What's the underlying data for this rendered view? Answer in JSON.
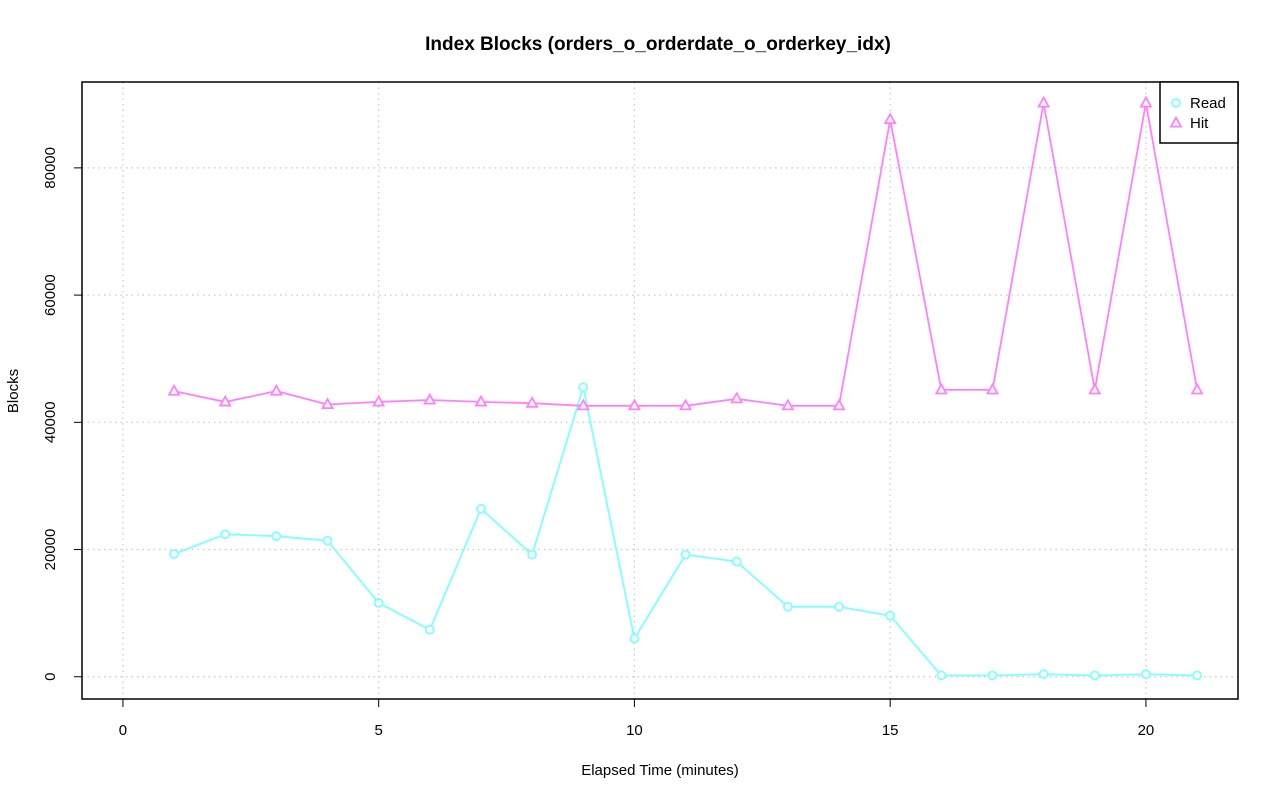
{
  "chart_data": {
    "type": "line",
    "title": "Index Blocks (orders_o_orderdate_o_orderkey_idx)",
    "xlabel": "Elapsed Time (minutes)",
    "ylabel": "Blocks",
    "xlim": [
      -0.8,
      21.8
    ],
    "ylim": [
      -3500,
      93500
    ],
    "x_ticks": [
      0,
      5,
      10,
      15,
      20
    ],
    "y_ticks": [
      0,
      20000,
      40000,
      60000,
      80000
    ],
    "grid": true,
    "legend_position": "top-right",
    "x": [
      1,
      2,
      3,
      4,
      5,
      6,
      7,
      8,
      9,
      10,
      11,
      12,
      13,
      14,
      15,
      16,
      17,
      18,
      19,
      20,
      21
    ],
    "series": [
      {
        "name": "Read",
        "color": "#7fffff",
        "marker": "circle",
        "values": [
          19300,
          22400,
          22100,
          21400,
          11600,
          7400,
          26400,
          19200,
          45500,
          6000,
          19200,
          18100,
          11000,
          11000,
          9600,
          200,
          200,
          400,
          200,
          400,
          200
        ]
      },
      {
        "name": "Hit",
        "color": "#ff80ff",
        "marker": "triangle",
        "values": [
          44900,
          43200,
          44900,
          42800,
          43200,
          43500,
          43200,
          43000,
          42600,
          42600,
          42600,
          43700,
          42600,
          42600,
          87600,
          45100,
          45100,
          90200,
          45100,
          90200,
          45100
        ]
      }
    ]
  }
}
